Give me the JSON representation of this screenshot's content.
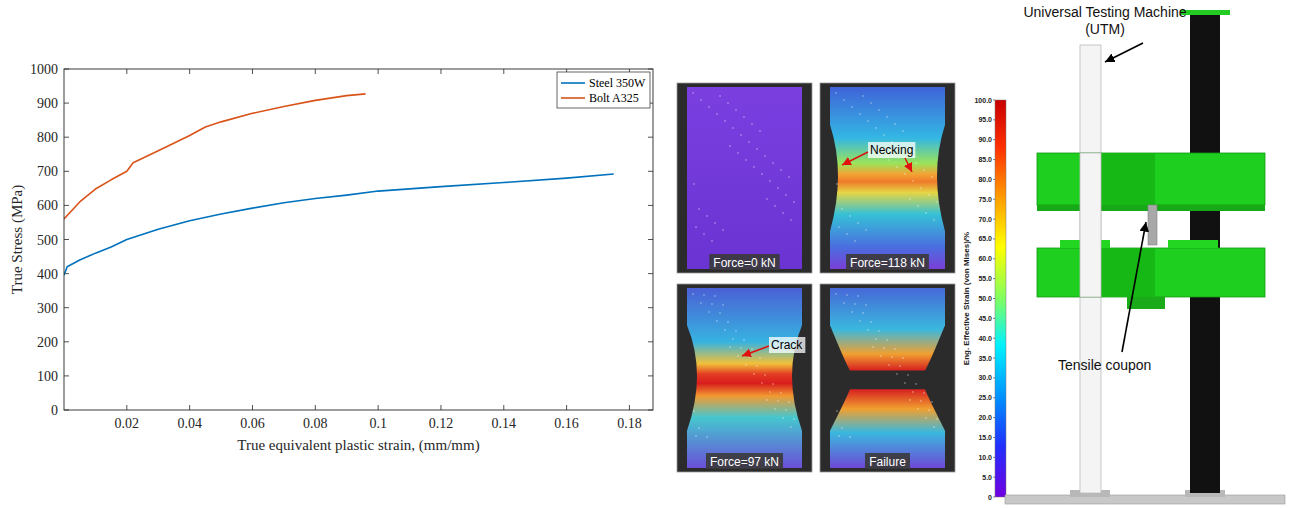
{
  "chart_data": {
    "type": "line",
    "xlabel": "True equivalent plastic strain, (mm/mm)",
    "ylabel": "True Stress (MPa)",
    "xlim": [
      0,
      0.1875
    ],
    "ylim": [
      0,
      1000
    ],
    "xticks": [
      0.02,
      0.04,
      0.06,
      0.08,
      0.1,
      0.12,
      0.14,
      0.16,
      0.18
    ],
    "yticks": [
      0,
      100,
      200,
      300,
      400,
      500,
      600,
      700,
      800,
      900,
      1000
    ],
    "grid": false,
    "legend": "top-right",
    "series": [
      {
        "name": "Steel 350W",
        "color": "#0072BD",
        "x": [
          0,
          0.001,
          0.005,
          0.01,
          0.015,
          0.02,
          0.03,
          0.04,
          0.05,
          0.06,
          0.07,
          0.08,
          0.09,
          0.1,
          0.12,
          0.14,
          0.16,
          0.175
        ],
        "values": [
          395,
          420,
          440,
          460,
          478,
          500,
          530,
          555,
          575,
          592,
          608,
          620,
          630,
          642,
          655,
          667,
          680,
          692
        ]
      },
      {
        "name": "Bolt A325",
        "color": "#D95319",
        "x": [
          0,
          0.005,
          0.01,
          0.015,
          0.02,
          0.022,
          0.03,
          0.04,
          0.045,
          0.05,
          0.06,
          0.07,
          0.08,
          0.09,
          0.096
        ],
        "values": [
          560,
          610,
          648,
          675,
          700,
          725,
          760,
          805,
          830,
          845,
          870,
          890,
          908,
          922,
          927
        ]
      }
    ]
  },
  "photos": {
    "panels": [
      {
        "caption": "Force=0 kN"
      },
      {
        "caption": "Force=118 kN"
      },
      {
        "caption": "Force=97 kN"
      },
      {
        "caption": "Failure"
      }
    ],
    "annotations": {
      "necking": "Necking",
      "crack": "Crack"
    }
  },
  "colorbar": {
    "title": "Eng. Effective Strain (von Mises)/%",
    "range": [
      0,
      100
    ],
    "ticks": [
      {
        "value": 100,
        "label": "100.0"
      },
      {
        "value": 95,
        "label": "95.0"
      },
      {
        "value": 90,
        "label": "90.0"
      },
      {
        "value": 85,
        "label": "85.0"
      },
      {
        "value": 80,
        "label": "80.0"
      },
      {
        "value": 75,
        "label": "75.0"
      },
      {
        "value": 70,
        "label": "70.0"
      },
      {
        "value": 65,
        "label": "65.0"
      },
      {
        "value": 60,
        "label": "60.0"
      },
      {
        "value": 55,
        "label": "55.0"
      },
      {
        "value": 50,
        "label": "50.0"
      },
      {
        "value": 45,
        "label": "45.0"
      },
      {
        "value": 40,
        "label": "40.0"
      },
      {
        "value": 35,
        "label": "35.0"
      },
      {
        "value": 30,
        "label": "30.0"
      },
      {
        "value": 25,
        "label": "25.0"
      },
      {
        "value": 20,
        "label": "20.0"
      },
      {
        "value": 15,
        "label": "15.0"
      },
      {
        "value": 10,
        "label": "10.0"
      },
      {
        "value": 5,
        "label": "5.0"
      },
      0
    ]
  },
  "schematic": {
    "machine_label": "Universal Testing Machine (UTM)",
    "coupon_label": "Tensile coupon"
  }
}
